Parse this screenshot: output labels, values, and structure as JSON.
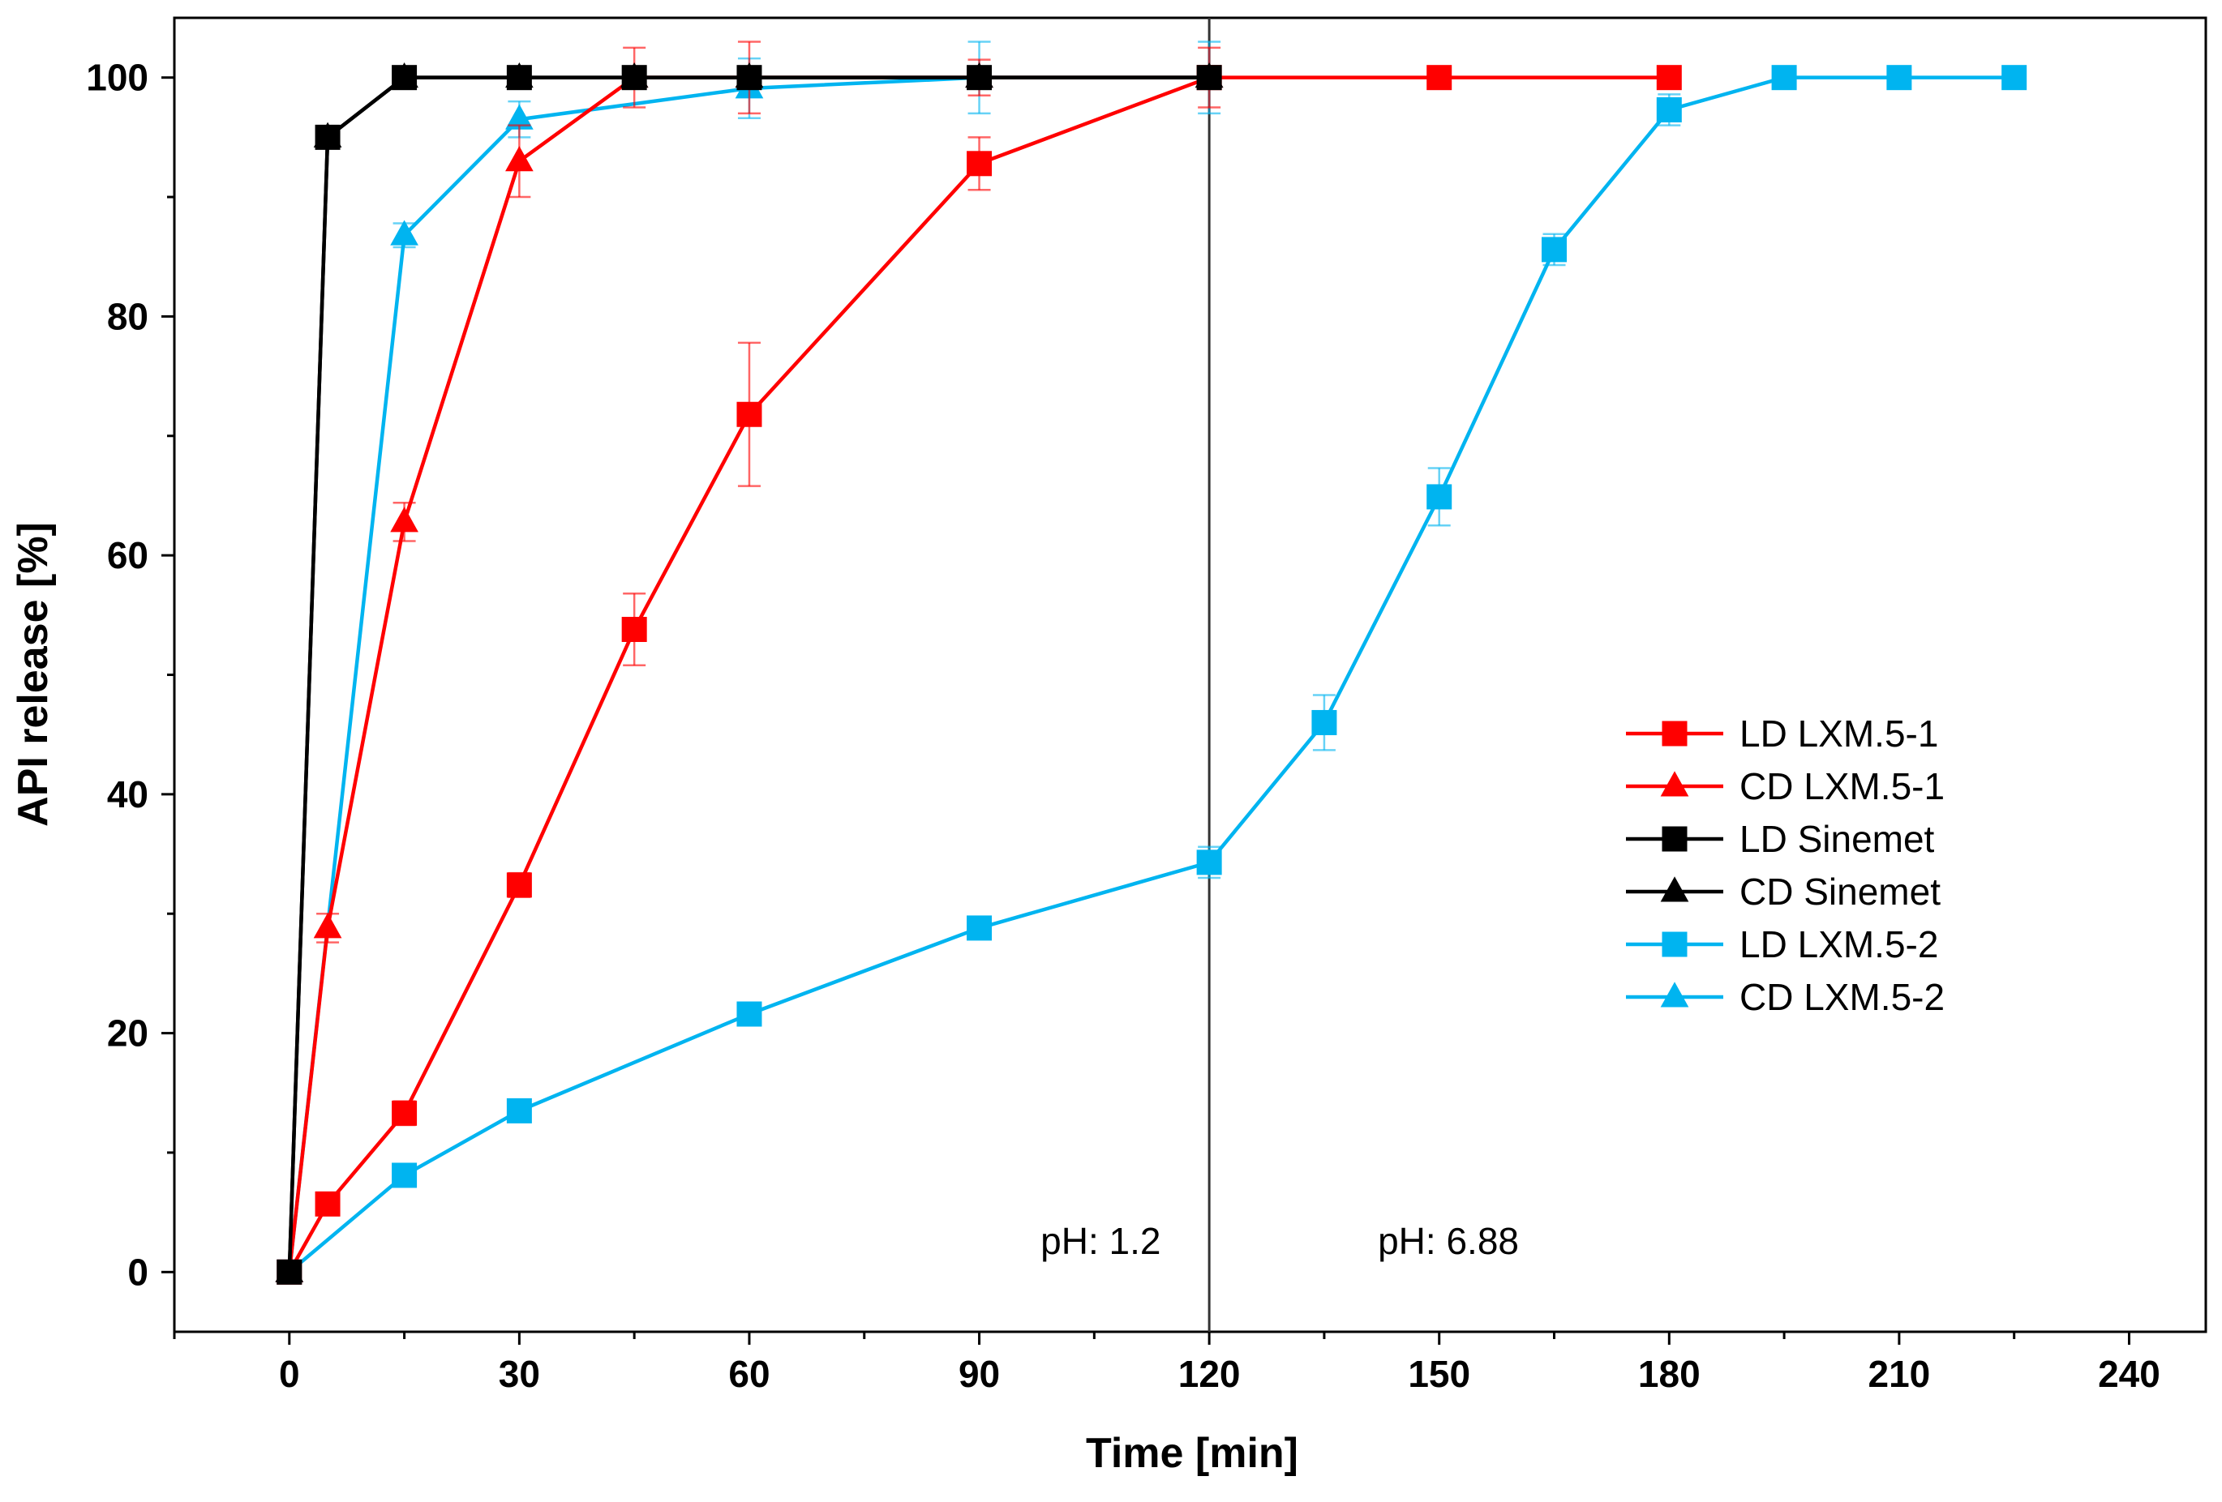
{
  "chart_data": {
    "type": "line",
    "title": "",
    "xlabel": "Time [min]",
    "ylabel": "API release [%]",
    "xlim": [
      -15,
      250
    ],
    "ylim": [
      -5,
      105
    ],
    "xticks": [
      0,
      30,
      60,
      90,
      120,
      150,
      180,
      210,
      240
    ],
    "yticks": [
      0,
      20,
      40,
      60,
      80,
      100
    ],
    "grid": false,
    "legend_position": "right-center",
    "vline": {
      "x": 120
    },
    "annotations": [
      {
        "text": "pH: 1.2",
        "x": 98,
        "y": 1.5
      },
      {
        "text": "pH: 6.88",
        "x": 142,
        "y": 1.5
      }
    ],
    "series": [
      {
        "name": "LD LXM.5-1",
        "color": "#ff0000",
        "marker": "square",
        "x": [
          0,
          5,
          15,
          30,
          45,
          60,
          90,
          120,
          150,
          180
        ],
        "y": [
          0,
          5.7,
          13.3,
          32.4,
          53.8,
          71.8,
          92.8,
          100,
          100,
          100
        ],
        "err": [
          0,
          0.5,
          1.0,
          1.0,
          3.0,
          6.0,
          2.2,
          0,
          0,
          0
        ]
      },
      {
        "name": "CD LXM.5-1",
        "color": "#ff0000",
        "marker": "triangle",
        "x": [
          0,
          5,
          15,
          30,
          45,
          60,
          90,
          120
        ],
        "y": [
          0,
          28.8,
          62.8,
          93,
          100,
          100,
          100,
          100
        ],
        "err": [
          0,
          1.2,
          1.6,
          3.0,
          2.5,
          3.0,
          1.5,
          2.5
        ]
      },
      {
        "name": "LD Sinemet",
        "color": "#000000",
        "marker": "square",
        "x": [
          0,
          5,
          15,
          30,
          45,
          60,
          90,
          120
        ],
        "y": [
          0,
          95,
          100,
          100,
          100,
          100,
          100,
          100
        ],
        "err": [
          0,
          0,
          0,
          0,
          0,
          0,
          0,
          0
        ]
      },
      {
        "name": "CD Sinemet",
        "color": "#000000",
        "marker": "triangle",
        "x": [
          0,
          5,
          15,
          30,
          45,
          60,
          90,
          120
        ],
        "y": [
          0,
          95,
          100,
          100,
          100,
          100,
          100,
          100
        ],
        "err": [
          0,
          0,
          0,
          0,
          0,
          0,
          0,
          0
        ]
      },
      {
        "name": "LD LXM.5-2",
        "color": "#00b4f0",
        "marker": "square",
        "x": [
          0,
          15,
          30,
          60,
          90,
          120,
          135,
          150,
          165,
          180,
          195,
          210,
          225
        ],
        "y": [
          0,
          8.1,
          13.5,
          21.6,
          28.8,
          34.3,
          46,
          64.9,
          85.6,
          97.3,
          100,
          100,
          100
        ],
        "err": [
          0,
          0,
          0,
          0,
          0,
          1.3,
          2.3,
          2.4,
          1.3,
          1.3,
          0,
          0,
          0
        ]
      },
      {
        "name": "CD LXM.5-2",
        "color": "#00b4f0",
        "marker": "triangle",
        "x": [
          0,
          15,
          30,
          60,
          90,
          120
        ],
        "y": [
          0,
          86.8,
          96.5,
          99.1,
          100,
          100
        ],
        "err": [
          0,
          1.0,
          1.5,
          2.5,
          3.0,
          3.0
        ]
      }
    ]
  }
}
